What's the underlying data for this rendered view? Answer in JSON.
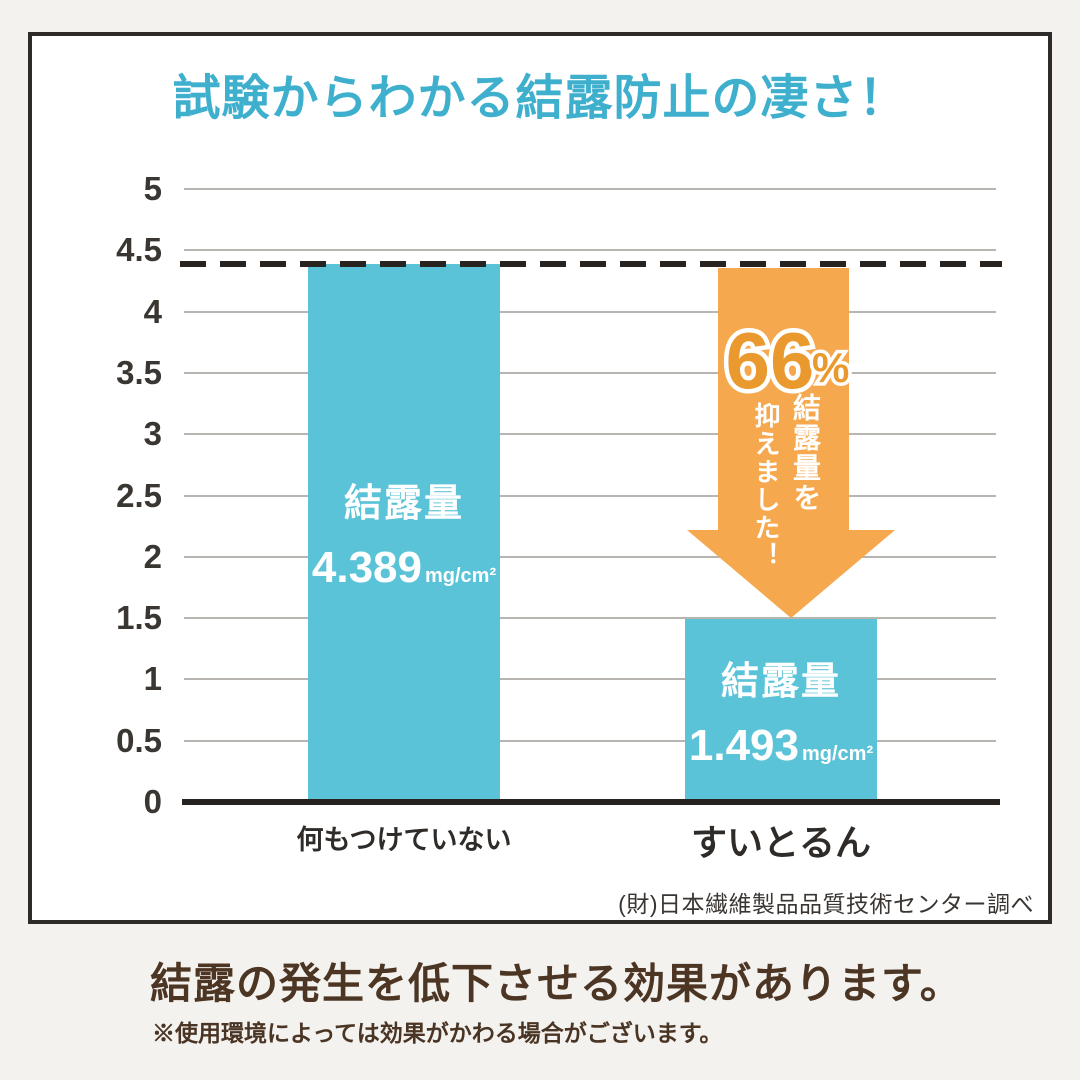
{
  "title": "試験からわかる結露防止の凄さ！",
  "colors": {
    "title": "#3fafce",
    "bar": "#5bc3d8",
    "arrow": "#f6a84e",
    "percent": "#e9992d",
    "footer_text": "#4c3523"
  },
  "chart_data": {
    "type": "bar",
    "title": "試験からわかる結露防止の凄さ！",
    "categories": [
      "何もつけていない",
      "すいとるん"
    ],
    "values": [
      4.389,
      1.493
    ],
    "bars": [
      {
        "category": "何もつけていない",
        "value": "4.389",
        "unit": "mg/cm²",
        "label": "結露量"
      },
      {
        "category": "すいとるん",
        "value": "1.493",
        "unit": "mg/cm²",
        "label": "結露量"
      }
    ],
    "xlabel": "",
    "ylabel": "",
    "ylim": [
      0,
      5
    ],
    "yticks": [
      0,
      0.5,
      1,
      1.5,
      2,
      2.5,
      3,
      3.5,
      4,
      4.5,
      5
    ],
    "grid": true,
    "legend": false,
    "reference_line": 4.389,
    "annotation": {
      "percent": "66",
      "percent_symbol": "%",
      "lines": [
        "結露量を",
        "抑えました！"
      ]
    },
    "bar_color": "#5bc3d8",
    "arrow_color": "#f6a84e"
  },
  "source": "(財)日本繊維製品品質技術センター調べ",
  "footer": {
    "heading": "結露の発生を低下させる効果があります。",
    "note": "※使用環境によっては効果がかわる場合がございます。"
  }
}
